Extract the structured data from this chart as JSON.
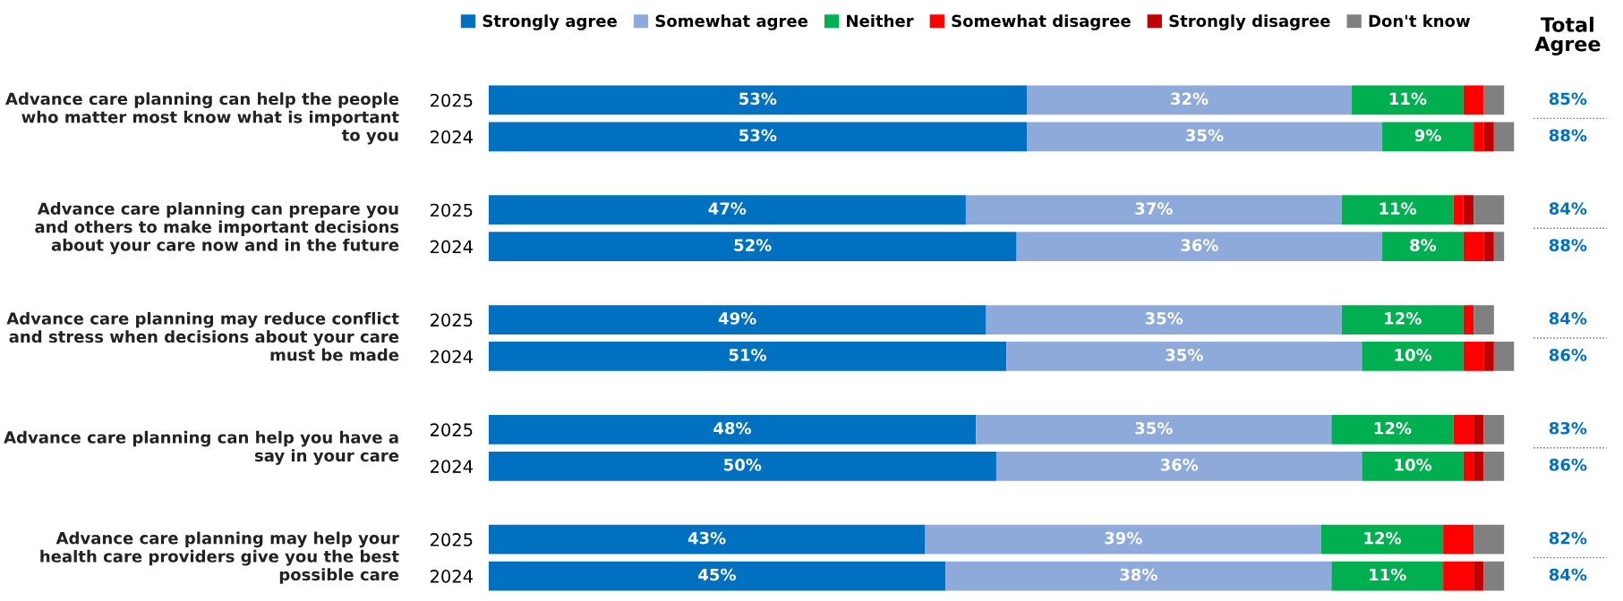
{
  "chart_data": {
    "type": "bar",
    "orientation": "horizontal",
    "stacked": true,
    "legend": "top",
    "grid": false,
    "categories": [
      "2025",
      "2024",
      "2025",
      "2024",
      "2025",
      "2024",
      "2025",
      "2024",
      "2025",
      "2024"
    ],
    "series": [
      {
        "name": "Strongly agree",
        "color": "#0070c0",
        "values": [
          53,
          53,
          47,
          52,
          49,
          51,
          48,
          50,
          43,
          45
        ],
        "value_labels": [
          "53%",
          "53%",
          "47%",
          "52%",
          "49%",
          "51%",
          "48%",
          "50%",
          "43%",
          "45%"
        ]
      },
      {
        "name": "Somewhat agree",
        "color": "#8eaadb",
        "values": [
          32,
          35,
          37,
          36,
          35,
          35,
          35,
          36,
          39,
          38
        ],
        "value_labels": [
          "32%",
          "35%",
          "37%",
          "36%",
          "35%",
          "35%",
          "35%",
          "36%",
          "39%",
          "38%"
        ]
      },
      {
        "name": "Neither",
        "color": "#00b050",
        "values": [
          11,
          9,
          11,
          8,
          12,
          10,
          12,
          10,
          12,
          11
        ],
        "value_labels": [
          "11%",
          "9%",
          "11%",
          "8%",
          "12%",
          "10%",
          "12%",
          "10%",
          "12%",
          "11%"
        ]
      },
      {
        "name": "Somewhat disagree",
        "color": "#ff0000",
        "values": [
          2,
          1,
          1,
          2,
          1,
          2,
          2,
          1,
          3,
          3
        ]
      },
      {
        "name": "Strongly disagree",
        "color": "#c00000",
        "values": [
          0,
          1,
          1,
          1,
          0,
          1,
          1,
          1,
          0,
          1
        ]
      },
      {
        "name": "Don't know",
        "color": "#808080",
        "values": [
          2,
          2,
          3,
          1,
          2,
          2,
          2,
          2,
          3,
          2
        ]
      }
    ],
    "annotations": [
      "Advance care planning can help the people who matter most know what is important to you",
      "Advance care planning can prepare you and others to make important decisions about your care now and in the future",
      "Advance care planning may reduce conflict and stress when decisions about your care must be made",
      "Advance care planning can help you have a say in your care",
      "Advance care planning may help your health care providers give you the best possible care",
      "Total Agree",
      "85%",
      "88%",
      "84%",
      "88%",
      "84%",
      "86%",
      "83%",
      "86%",
      "82%",
      "84%"
    ]
  }
}
